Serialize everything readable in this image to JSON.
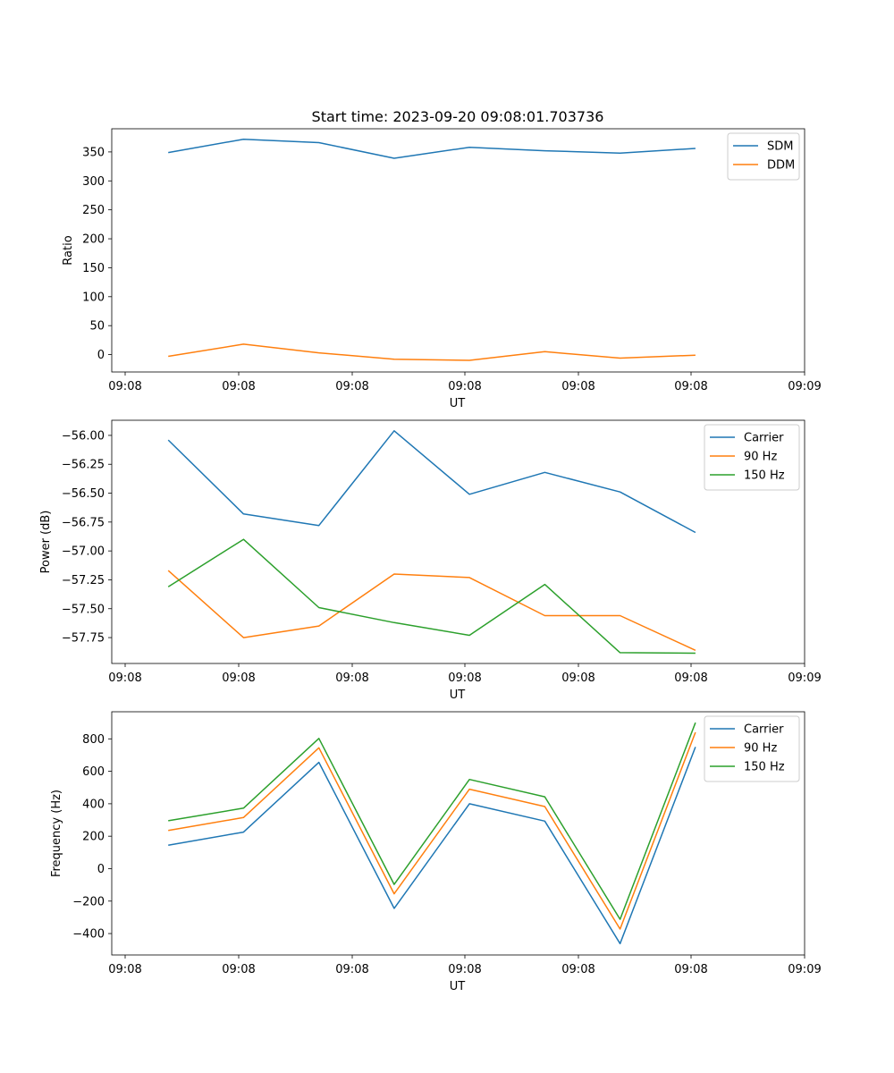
{
  "figure": {
    "title": "Start time: 2023-09-20 09:08:01.703736"
  },
  "chart_data": [
    {
      "type": "line",
      "id": "ratio",
      "title": "Start time: 2023-09-20 09:08:01.703736",
      "xlabel": "UT",
      "ylabel": "Ratio",
      "x_tick_labels": [
        "09:08",
        "09:08",
        "09:08",
        "09:08",
        "09:08",
        "09:08",
        "09:09"
      ],
      "y_ticks": [
        0,
        50,
        100,
        150,
        200,
        250,
        300,
        350
      ],
      "ylim": [
        -30,
        390
      ],
      "xlim": [
        -0.75,
        8.45
      ],
      "legend": "top-right",
      "x": [
        0,
        1,
        2,
        3,
        4,
        5,
        6,
        7
      ],
      "series": [
        {
          "name": "SDM",
          "color": "#1f77b4",
          "values": [
            349,
            372,
            366,
            339,
            358,
            352,
            348,
            356
          ]
        },
        {
          "name": "DDM",
          "color": "#ff7f0e",
          "values": [
            -3,
            18,
            3,
            -8,
            -10,
            5,
            -6,
            -1
          ]
        }
      ]
    },
    {
      "type": "line",
      "id": "power",
      "title": "",
      "xlabel": "UT",
      "ylabel": "Power (dB)",
      "x_tick_labels": [
        "09:08",
        "09:08",
        "09:08",
        "09:08",
        "09:08",
        "09:08",
        "09:09"
      ],
      "y_ticks": [
        -56.0,
        -56.25,
        -56.5,
        -56.75,
        -57.0,
        -57.25,
        -57.5,
        -57.75
      ],
      "y_tick_labels": [
        "−56.00",
        "−56.25",
        "−56.50",
        "−56.75",
        "−57.00",
        "−57.25",
        "−57.50",
        "−57.75"
      ],
      "ylim": [
        -57.974,
        -55.869
      ],
      "xlim": [
        -0.75,
        8.45
      ],
      "legend": "top-right",
      "x": [
        0,
        1,
        2,
        3,
        4,
        5,
        6,
        7
      ],
      "series": [
        {
          "name": "Carrier",
          "color": "#1f77b4",
          "values": [
            -56.04,
            -56.68,
            -56.78,
            -55.96,
            -56.51,
            -56.32,
            -56.49,
            -56.84
          ]
        },
        {
          "name": "90 Hz",
          "color": "#ff7f0e",
          "values": [
            -57.17,
            -57.75,
            -57.65,
            -57.2,
            -57.23,
            -57.56,
            -57.56,
            -57.86
          ]
        },
        {
          "name": "150 Hz",
          "color": "#2ca02c",
          "values": [
            -57.31,
            -56.9,
            -57.49,
            -57.62,
            -57.73,
            -57.29,
            -57.88,
            -57.885
          ]
        }
      ]
    },
    {
      "type": "line",
      "id": "frequency",
      "title": "",
      "xlabel": "UT",
      "ylabel": "Frequency (Hz)",
      "x_tick_labels": [
        "09:08",
        "09:08",
        "09:08",
        "09:08",
        "09:08",
        "09:08",
        "09:09"
      ],
      "y_ticks": [
        -400,
        -200,
        0,
        200,
        400,
        600,
        800
      ],
      "y_tick_labels": [
        "−400",
        "−200",
        "0",
        "200",
        "400",
        "600",
        "800"
      ],
      "ylim": [
        -532,
        967
      ],
      "xlim": [
        -0.75,
        8.45
      ],
      "legend": "top-right",
      "x": [
        0,
        1,
        2,
        3,
        4,
        5,
        6,
        7
      ],
      "series": [
        {
          "name": "Carrier",
          "color": "#1f77b4",
          "values": [
            145,
            225,
            655,
            -245,
            400,
            293,
            -462,
            750
          ]
        },
        {
          "name": "90 Hz",
          "color": "#ff7f0e",
          "values": [
            235,
            315,
            745,
            -155,
            490,
            383,
            -372,
            840
          ]
        },
        {
          "name": "150 Hz",
          "color": "#2ca02c",
          "values": [
            295,
            373,
            803,
            -97,
            550,
            443,
            -312,
            900
          ]
        }
      ]
    }
  ]
}
